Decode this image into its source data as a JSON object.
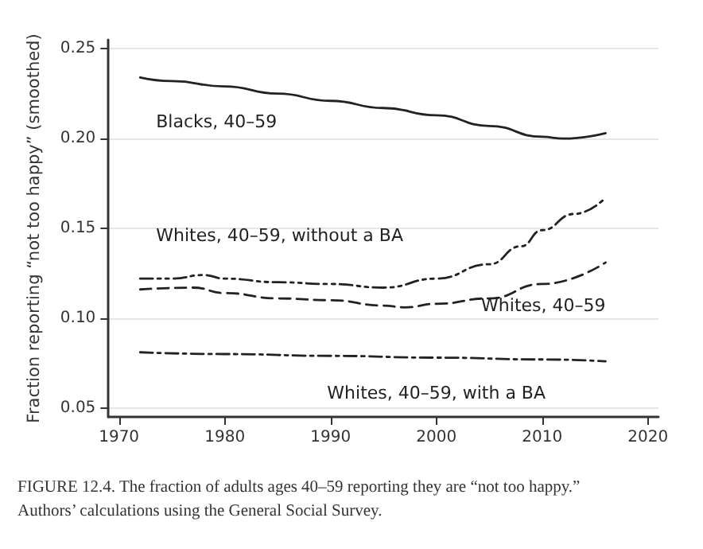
{
  "chart_data": {
    "type": "line",
    "ylabel": "Fraction reporting “not too happy” (smoothed)",
    "xlim": [
      1969,
      2021
    ],
    "xticks": [
      1970,
      1980,
      1990,
      2000,
      2010,
      2020
    ],
    "ylim": [
      0.045,
      0.255
    ],
    "yticks": [
      {
        "value": 0.05,
        "label": "0.05"
      },
      {
        "value": 0.1,
        "label": "0.10"
      },
      {
        "value": 0.15,
        "label": "0.15"
      },
      {
        "value": 0.2,
        "label": "0.20"
      },
      {
        "value": 0.25,
        "label": "0.25"
      }
    ],
    "grid": "y",
    "marker": "none",
    "series": [
      {
        "name": "Blacks, 40–59",
        "color": "#222222",
        "line_style": "solid",
        "x": [
          1972,
          1975,
          1980,
          1985,
          1990,
          1995,
          2000,
          2005,
          2010,
          2012,
          2016
        ],
        "values": [
          0.234,
          0.232,
          0.229,
          0.225,
          0.221,
          0.217,
          0.213,
          0.207,
          0.201,
          0.2,
          0.203
        ]
      },
      {
        "name": "Whites, 40–59, without a BA",
        "color": "#222222",
        "line_style": "dashdotdot",
        "x": [
          1972,
          1975,
          1978,
          1980,
          1985,
          1990,
          1995,
          2000,
          2005,
          2008,
          2010,
          2013,
          2016
        ],
        "values": [
          0.122,
          0.122,
          0.124,
          0.122,
          0.12,
          0.119,
          0.117,
          0.122,
          0.13,
          0.14,
          0.149,
          0.158,
          0.167
        ]
      },
      {
        "name": "Whites, 40–59",
        "color": "#222222",
        "line_style": "dashed",
        "x": [
          1972,
          1977,
          1980,
          1985,
          1990,
          1995,
          1997,
          2000,
          2005,
          2010,
          2016
        ],
        "values": [
          0.116,
          0.117,
          0.114,
          0.111,
          0.11,
          0.107,
          0.106,
          0.108,
          0.111,
          0.119,
          0.131
        ]
      },
      {
        "name": "Whites, 40–59, with a BA",
        "color": "#222222",
        "line_style": "dashdot",
        "x": [
          1972,
          1980,
          1990,
          2000,
          2010,
          2016
        ],
        "values": [
          0.081,
          0.08,
          0.079,
          0.078,
          0.077,
          0.076
        ]
      }
    ],
    "annotations": [
      "FIGURE 12.4. The fraction of adults ages 40–59 reporting they are “not too happy.” Authors’ calculations using the General Social Survey."
    ]
  }
}
